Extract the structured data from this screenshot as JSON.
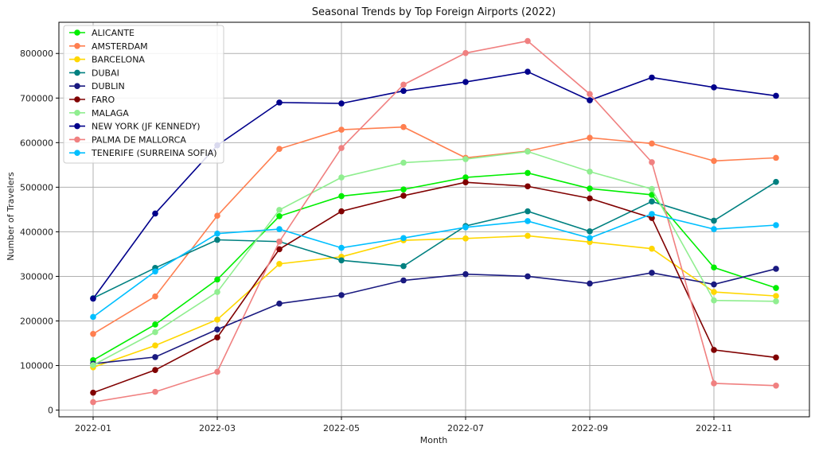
{
  "chart_data": {
    "type": "line",
    "title": "Seasonal Trends by Top Foreign Airports (2022)",
    "xlabel": "Month",
    "ylabel": "Number of Travelers",
    "x": [
      "2022-01",
      "2022-02",
      "2022-03",
      "2022-04",
      "2022-05",
      "2022-06",
      "2022-07",
      "2022-08",
      "2022-09",
      "2022-10",
      "2022-11",
      "2022-12"
    ],
    "x_tick_labels": [
      "2022-01",
      "2022-03",
      "2022-05",
      "2022-07",
      "2022-09",
      "2022-11"
    ],
    "y_ticks": [
      0,
      100000,
      200000,
      300000,
      400000,
      500000,
      600000,
      700000,
      800000
    ],
    "ylim": [
      -15000,
      870000
    ],
    "grid": true,
    "legend_position": "top-left",
    "series": [
      {
        "name": "ALICANTE",
        "color": "#00ee00",
        "values": [
          112000,
          192000,
          293000,
          435000,
          480000,
          495000,
          522000,
          532000,
          497000,
          483000,
          320000,
          274000
        ]
      },
      {
        "name": "AMSTERDAM",
        "color": "#ff7f50",
        "values": [
          171000,
          255000,
          436000,
          586000,
          629000,
          635000,
          566000,
          581000,
          611000,
          598000,
          559000,
          566000
        ]
      },
      {
        "name": "BARCELONA",
        "color": "#ffd700",
        "values": [
          96000,
          145000,
          203000,
          328000,
          344000,
          381000,
          385000,
          391000,
          377000,
          362000,
          265000,
          256000
        ]
      },
      {
        "name": "DUBAI",
        "color": "#008080",
        "values": [
          251000,
          319000,
          382000,
          378000,
          336000,
          323000,
          413000,
          446000,
          401000,
          468000,
          425000,
          512000
        ]
      },
      {
        "name": "DUBLIN",
        "color": "#1a1a80",
        "values": [
          104000,
          119000,
          181000,
          239000,
          258000,
          291000,
          305000,
          300000,
          284000,
          308000,
          282000,
          317000
        ]
      },
      {
        "name": "FARO",
        "color": "#800000",
        "values": [
          39000,
          90000,
          163000,
          361000,
          446000,
          481000,
          511000,
          502000,
          475000,
          431000,
          135000,
          118000
        ]
      },
      {
        "name": "MALAGA",
        "color": "#90ee90",
        "values": [
          101000,
          175000,
          265000,
          449000,
          522000,
          555000,
          563000,
          580000,
          535000,
          496000,
          246000,
          244000
        ]
      },
      {
        "name": "NEW YORK (JF KENNEDY)",
        "color": "#00008b",
        "values": [
          250000,
          441000,
          594000,
          690000,
          688000,
          716000,
          736000,
          759000,
          695000,
          746000,
          724000,
          705000
        ]
      },
      {
        "name": "PALMA DE MALLORCA",
        "color": "#f08080",
        "values": [
          18000,
          41000,
          86000,
          378000,
          588000,
          730000,
          801000,
          828000,
          709000,
          556000,
          60000,
          55000
        ]
      },
      {
        "name": "TENERIFE (SURREINA SOFIA)",
        "color": "#00bfff",
        "values": [
          209000,
          311000,
          396000,
          406000,
          364000,
          386000,
          410000,
          424000,
          386000,
          440000,
          406000,
          415000
        ]
      }
    ]
  }
}
